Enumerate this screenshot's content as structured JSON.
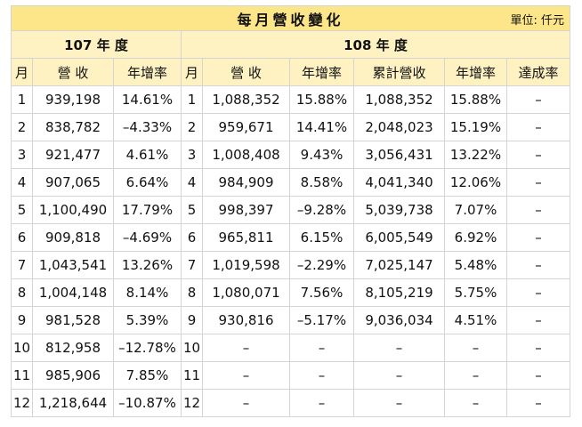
{
  "title": "每月營收變化",
  "unit": "單位: 仟元",
  "year_107": "107 年 度",
  "year_108": "108 年 度",
  "headers_107": [
    "月",
    "營 收",
    "年增率"
  ],
  "headers_108": [
    "月",
    "營 收",
    "年增率",
    "累計營收",
    "年增率",
    "達成率"
  ],
  "rows": [
    {
      "m107": "1",
      "rev107": "939,198",
      "yoy107": "14.61%",
      "m108": "1",
      "rev108": "1,088,352",
      "yoy108": "15.88%",
      "cum108": "1,088,352",
      "cumyoy108": "15.88%",
      "ach108": "–"
    },
    {
      "m107": "2",
      "rev107": "838,782",
      "yoy107": "–4.33%",
      "m108": "2",
      "rev108": "959,671",
      "yoy108": "14.41%",
      "cum108": "2,048,023",
      "cumyoy108": "15.19%",
      "ach108": "–"
    },
    {
      "m107": "3",
      "rev107": "921,477",
      "yoy107": "4.61%",
      "m108": "3",
      "rev108": "1,008,408",
      "yoy108": "9.43%",
      "cum108": "3,056,431",
      "cumyoy108": "13.22%",
      "ach108": "–"
    },
    {
      "m107": "4",
      "rev107": "907,065",
      "yoy107": "6.64%",
      "m108": "4",
      "rev108": "984,909",
      "yoy108": "8.58%",
      "cum108": "4,041,340",
      "cumyoy108": "12.06%",
      "ach108": "–"
    },
    {
      "m107": "5",
      "rev107": "1,100,490",
      "yoy107": "17.79%",
      "m108": "5",
      "rev108": "998,397",
      "yoy108": "–9.28%",
      "cum108": "5,039,738",
      "cumyoy108": "7.07%",
      "ach108": "–"
    },
    {
      "m107": "6",
      "rev107": "909,818",
      "yoy107": "–4.69%",
      "m108": "6",
      "rev108": "965,811",
      "yoy108": "6.15%",
      "cum108": "6,005,549",
      "cumyoy108": "6.92%",
      "ach108": "–"
    },
    {
      "m107": "7",
      "rev107": "1,043,541",
      "yoy107": "13.26%",
      "m108": "7",
      "rev108": "1,019,598",
      "yoy108": "–2.29%",
      "cum108": "7,025,147",
      "cumyoy108": "5.48%",
      "ach108": "–"
    },
    {
      "m107": "8",
      "rev107": "1,004,148",
      "yoy107": "8.14%",
      "m108": "8",
      "rev108": "1,080,071",
      "yoy108": "7.56%",
      "cum108": "8,105,219",
      "cumyoy108": "5.75%",
      "ach108": "–"
    },
    {
      "m107": "9",
      "rev107": "981,528",
      "yoy107": "5.39%",
      "m108": "9",
      "rev108": "930,816",
      "yoy108": "–5.17%",
      "cum108": "9,036,034",
      "cumyoy108": "4.51%",
      "ach108": "–"
    },
    {
      "m107": "10",
      "rev107": "812,958",
      "yoy107": "–12.78%",
      "m108": "10",
      "rev108": "–",
      "yoy108": "–",
      "cum108": "–",
      "cumyoy108": "–",
      "ach108": "–"
    },
    {
      "m107": "11",
      "rev107": "985,906",
      "yoy107": "7.85%",
      "m108": "11",
      "rev108": "–",
      "yoy108": "–",
      "cum108": "–",
      "cumyoy108": "–",
      "ach108": "–"
    },
    {
      "m107": "12",
      "rev107": "1,218,644",
      "yoy107": "–10.87%",
      "m108": "12",
      "rev108": "–",
      "yoy108": "–",
      "cum108": "–",
      "cumyoy108": "–",
      "ach108": "–"
    }
  ]
}
